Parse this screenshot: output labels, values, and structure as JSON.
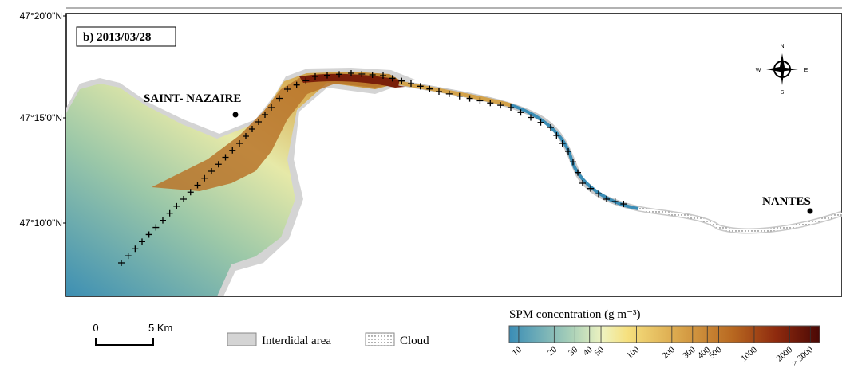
{
  "panel_label": "b) 2013/03/28",
  "latitude_labels": [
    "47°20'0\"N",
    "47°15'0\"N",
    "47°10'0\"N"
  ],
  "places": [
    "SAINT- NAZAIRE",
    "NANTES"
  ],
  "compass": {
    "north": "N",
    "south": "S",
    "east": "E",
    "west": "W"
  },
  "scale_bar": {
    "start": "0",
    "end": "5 Km"
  },
  "legend": {
    "intertidal": "Interdidal area",
    "cloud": "Cloud"
  },
  "colorbar": {
    "title": "SPM concentration (g m⁻³)",
    "scale": "log",
    "lim": [
      8.3,
      3600
    ],
    "ticks": [
      10,
      20,
      30,
      40,
      50,
      100,
      200,
      300,
      400,
      500,
      1000,
      2000,
      {
        "value": 3000,
        "label": "> 3000"
      }
    ]
  }
}
